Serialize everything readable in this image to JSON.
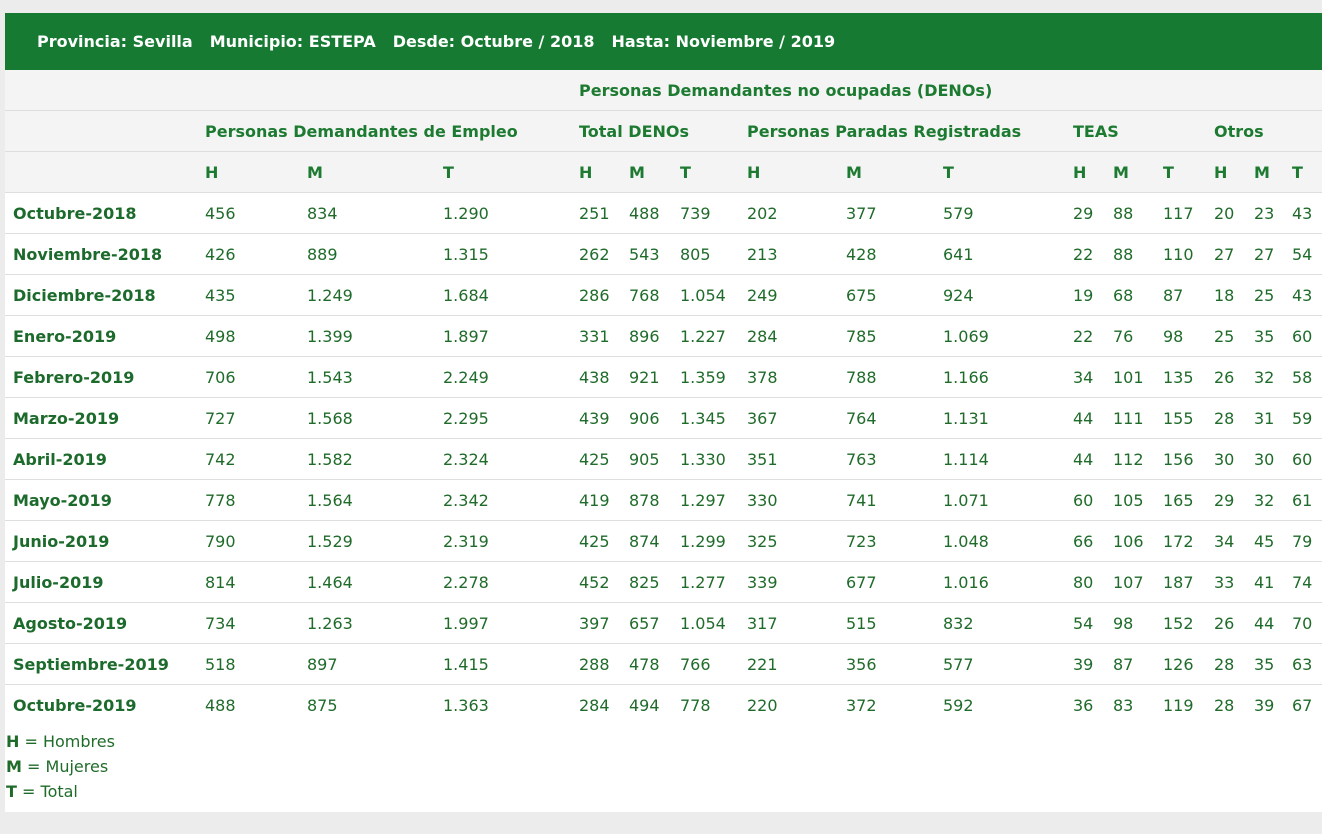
{
  "header": {
    "items": [
      "Provincia: Sevilla",
      "Municipio: ESTEPA",
      "Desde: Octubre / 2018",
      "Hasta: Noviembre / 2019"
    ]
  },
  "table": {
    "top_group": "Personas Demandantes no ocupadas (DENOs)",
    "groups": [
      "Personas Demandantes de Empleo",
      "Total DENOs",
      "Personas Paradas Registradas",
      "TEAS",
      "Otros"
    ],
    "column_labels": [
      "H",
      "M",
      "T",
      "H",
      "M",
      "T",
      "H",
      "M",
      "T",
      "H",
      "M",
      "T",
      "H",
      "M",
      "T"
    ],
    "rows": [
      {
        "label": "Octubre-2018",
        "values": [
          "456",
          "834",
          "1.290",
          "251",
          "488",
          "739",
          "202",
          "377",
          "579",
          "29",
          "88",
          "117",
          "20",
          "23",
          "43"
        ]
      },
      {
        "label": "Noviembre-2018",
        "values": [
          "426",
          "889",
          "1.315",
          "262",
          "543",
          "805",
          "213",
          "428",
          "641",
          "22",
          "88",
          "110",
          "27",
          "27",
          "54"
        ]
      },
      {
        "label": "Diciembre-2018",
        "values": [
          "435",
          "1.249",
          "1.684",
          "286",
          "768",
          "1.054",
          "249",
          "675",
          "924",
          "19",
          "68",
          "87",
          "18",
          "25",
          "43"
        ]
      },
      {
        "label": "Enero-2019",
        "values": [
          "498",
          "1.399",
          "1.897",
          "331",
          "896",
          "1.227",
          "284",
          "785",
          "1.069",
          "22",
          "76",
          "98",
          "25",
          "35",
          "60"
        ]
      },
      {
        "label": "Febrero-2019",
        "values": [
          "706",
          "1.543",
          "2.249",
          "438",
          "921",
          "1.359",
          "378",
          "788",
          "1.166",
          "34",
          "101",
          "135",
          "26",
          "32",
          "58"
        ]
      },
      {
        "label": "Marzo-2019",
        "values": [
          "727",
          "1.568",
          "2.295",
          "439",
          "906",
          "1.345",
          "367",
          "764",
          "1.131",
          "44",
          "111",
          "155",
          "28",
          "31",
          "59"
        ]
      },
      {
        "label": "Abril-2019",
        "values": [
          "742",
          "1.582",
          "2.324",
          "425",
          "905",
          "1.330",
          "351",
          "763",
          "1.114",
          "44",
          "112",
          "156",
          "30",
          "30",
          "60"
        ]
      },
      {
        "label": "Mayo-2019",
        "values": [
          "778",
          "1.564",
          "2.342",
          "419",
          "878",
          "1.297",
          "330",
          "741",
          "1.071",
          "60",
          "105",
          "165",
          "29",
          "32",
          "61"
        ]
      },
      {
        "label": "Junio-2019",
        "values": [
          "790",
          "1.529",
          "2.319",
          "425",
          "874",
          "1.299",
          "325",
          "723",
          "1.048",
          "66",
          "106",
          "172",
          "34",
          "45",
          "79"
        ]
      },
      {
        "label": "Julio-2019",
        "values": [
          "814",
          "1.464",
          "2.278",
          "452",
          "825",
          "1.277",
          "339",
          "677",
          "1.016",
          "80",
          "107",
          "187",
          "33",
          "41",
          "74"
        ]
      },
      {
        "label": "Agosto-2019",
        "values": [
          "734",
          "1.263",
          "1.997",
          "397",
          "657",
          "1.054",
          "317",
          "515",
          "832",
          "54",
          "98",
          "152",
          "26",
          "44",
          "70"
        ]
      },
      {
        "label": "Septiembre-2019",
        "values": [
          "518",
          "897",
          "1.415",
          "288",
          "478",
          "766",
          "221",
          "356",
          "577",
          "39",
          "87",
          "126",
          "28",
          "35",
          "63"
        ]
      },
      {
        "label": "Octubre-2019",
        "values": [
          "488",
          "875",
          "1.363",
          "284",
          "494",
          "778",
          "220",
          "372",
          "592",
          "36",
          "83",
          "119",
          "28",
          "39",
          "67"
        ]
      }
    ]
  },
  "legend": [
    {
      "letter": "H",
      "text": "= Hombres"
    },
    {
      "letter": "M",
      "text": "= Mujeres"
    },
    {
      "letter": "T",
      "text": "= Total"
    }
  ]
}
